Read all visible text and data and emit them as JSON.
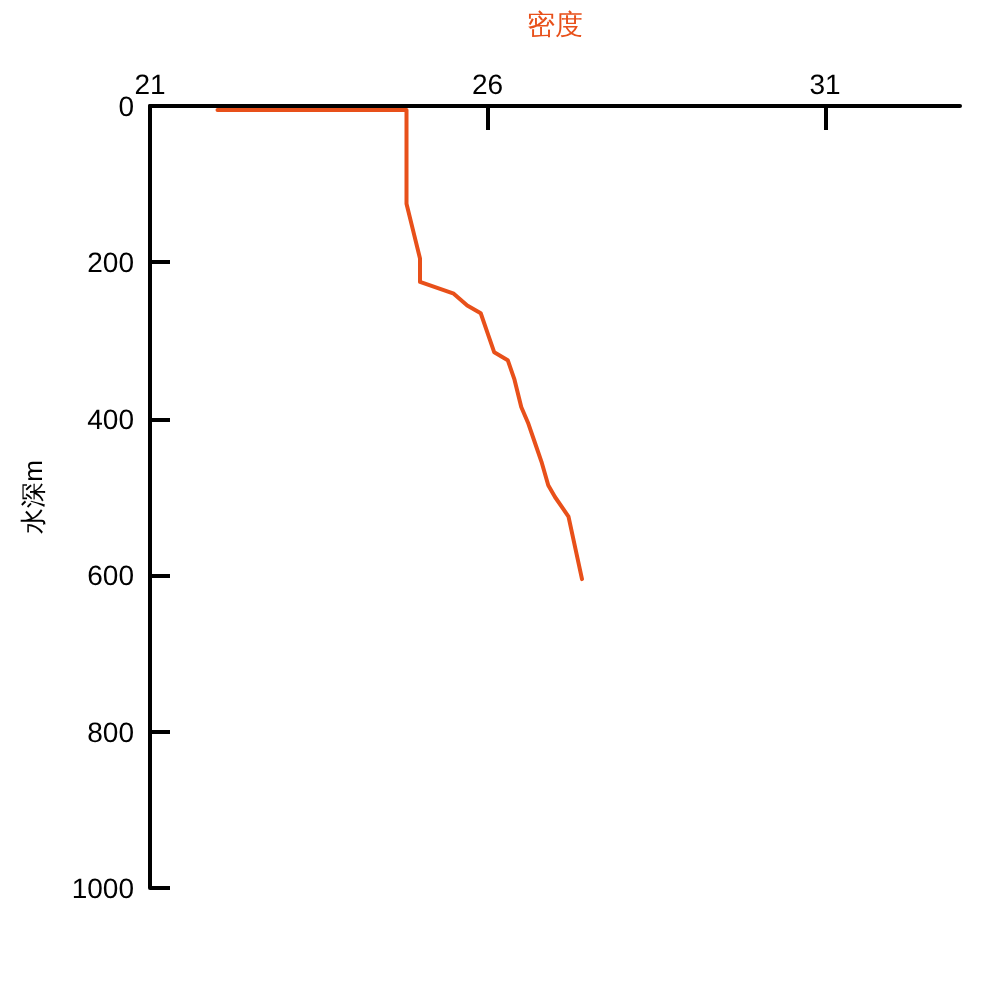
{
  "chart_data": {
    "type": "line",
    "xlabel": "密度",
    "ylabel": "水深m",
    "x": [
      22.0,
      24.8,
      24.8,
      24.9,
      25.0,
      25.0,
      25.5,
      25.7,
      25.9,
      26.0,
      26.1,
      26.3,
      26.4,
      26.5,
      26.6,
      26.7,
      26.8,
      26.9,
      27.0,
      27.2,
      27.3,
      27.4
    ],
    "values": [
      5,
      5,
      125,
      160,
      195,
      225,
      240,
      255,
      265,
      290,
      315,
      325,
      350,
      385,
      405,
      430,
      455,
      485,
      500,
      525,
      565,
      605
    ],
    "color": "#e8501a",
    "xlim": [
      21,
      33
    ],
    "xticks": [
      21,
      26,
      31
    ],
    "ylim": [
      1000,
      0
    ],
    "yticks": [
      0,
      200,
      400,
      600,
      800,
      1000
    ],
    "grid": false,
    "marker": "none",
    "line_style": "solid"
  }
}
